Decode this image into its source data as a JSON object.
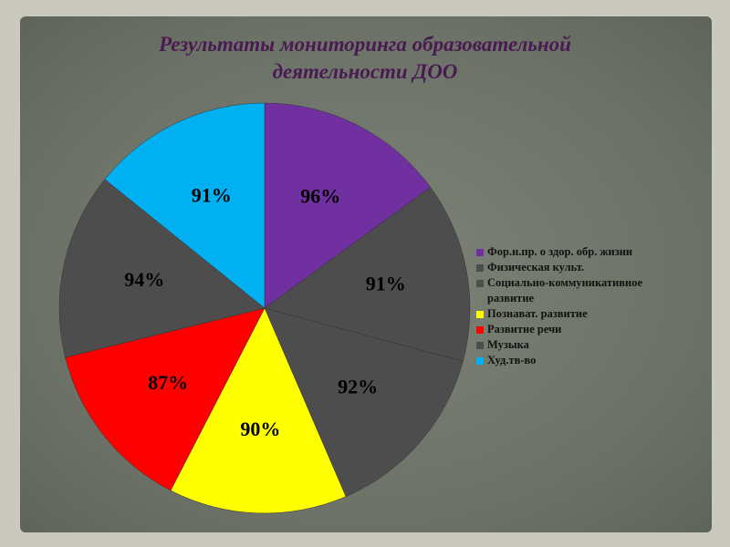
{
  "chart_data": {
    "type": "pie",
    "title": "Результаты мониторинга образовательной деятельности ДОО",
    "categories": [
      "Фор.н.пр. о здор. обр. жизни",
      "Физическая культ.",
      "Социально-коммуникативное развитие",
      "Познават. развитие",
      "Развитие речи",
      "Музыка",
      "Худ.тв-во"
    ],
    "values": [
      96,
      91,
      92,
      90,
      87,
      94,
      91
    ],
    "value_labels": [
      "96%",
      "91%",
      "92%",
      "90%",
      "87%",
      "94%",
      "91%"
    ],
    "colors": [
      "#7030a0",
      "#4d4d4d",
      "#4d4d4d",
      "#ffff00",
      "#ff0000",
      "#4d4d4d",
      "#00b0f0"
    ],
    "legend": "right"
  }
}
